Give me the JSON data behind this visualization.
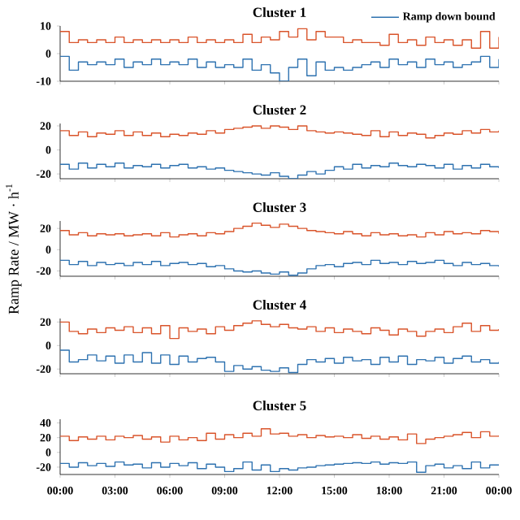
{
  "chart_data": [
    {
      "type": "step",
      "title": "Cluster 1",
      "x": [
        0,
        0.5,
        1,
        1.5,
        2,
        2.5,
        3,
        3.5,
        4,
        4.5,
        5,
        5.5,
        6,
        6.5,
        7,
        7.5,
        8,
        8.5,
        9,
        9.5,
        10,
        10.5,
        11,
        11.5,
        12,
        12.5,
        13,
        13.5,
        14,
        14.5,
        15,
        15.5,
        16,
        16.5,
        17,
        17.5,
        18,
        18.5,
        19,
        19.5,
        20,
        20.5,
        21,
        21.5,
        22,
        22.5,
        23,
        23.5,
        24
      ],
      "xlim": [
        0,
        24
      ],
      "xticks": [
        {
          "value": 0,
          "label": null
        },
        {
          "value": 3,
          "label": null
        },
        {
          "value": 6,
          "label": null
        },
        {
          "value": 9,
          "label": null
        },
        {
          "value": 12,
          "label": null
        },
        {
          "value": 15,
          "label": null
        },
        {
          "value": 18,
          "label": null
        },
        {
          "value": 21,
          "label": null
        },
        {
          "value": 24,
          "label": null
        }
      ],
      "ylim": [
        -10,
        10
      ],
      "yticks": [
        -10,
        0,
        10
      ],
      "tick_labels": "y",
      "legend": "top right",
      "series": [
        {
          "color": "#d9542b",
          "values": [
            8,
            4,
            5,
            4,
            5,
            4,
            6,
            4,
            5,
            4,
            5,
            4,
            5,
            4,
            6,
            4,
            5,
            4,
            5,
            4,
            7,
            4,
            6,
            5,
            8,
            6,
            9,
            5,
            8,
            6,
            6,
            4,
            5,
            4,
            4,
            3,
            7,
            4,
            5,
            3,
            6,
            4,
            5,
            3,
            5,
            2,
            8,
            2,
            6
          ]
        },
        {
          "name": "Ramp down bound",
          "color": "#2e72b0",
          "values": [
            -1,
            -6,
            -3,
            -4,
            -3,
            -4,
            -2,
            -5,
            -3,
            -4,
            -2,
            -4,
            -3,
            -4,
            -2,
            -5,
            -3,
            -5,
            -4,
            -5,
            -2,
            -6,
            -4,
            -7,
            -10,
            -5,
            -2,
            -8,
            -3,
            -6,
            -5,
            -6,
            -5,
            -4,
            -3,
            -5,
            -2,
            -4,
            -3,
            -5,
            -2,
            -4,
            -3,
            -5,
            -4,
            -3,
            -1,
            -5,
            -2
          ]
        }
      ]
    },
    {
      "type": "step",
      "title": "Cluster 2",
      "x": [
        0,
        0.5,
        1,
        1.5,
        2,
        2.5,
        3,
        3.5,
        4,
        4.5,
        5,
        5.5,
        6,
        6.5,
        7,
        7.5,
        8,
        8.5,
        9,
        9.5,
        10,
        10.5,
        11,
        11.5,
        12,
        12.5,
        13,
        13.5,
        14,
        14.5,
        15,
        15.5,
        16,
        16.5,
        17,
        17.5,
        18,
        18.5,
        19,
        19.5,
        20,
        20.5,
        21,
        21.5,
        22,
        22.5,
        23,
        23.5,
        24
      ],
      "xlim": [
        0,
        24
      ],
      "xticks": [
        {
          "value": 0,
          "label": null
        },
        {
          "value": 3,
          "label": null
        },
        {
          "value": 6,
          "label": null
        },
        {
          "value": 9,
          "label": null
        },
        {
          "value": 12,
          "label": null
        },
        {
          "value": 15,
          "label": null
        },
        {
          "value": 18,
          "label": null
        },
        {
          "value": 21,
          "label": null
        },
        {
          "value": 24,
          "label": null
        }
      ],
      "ylim": [
        -24,
        22
      ],
      "yticks": [
        -20,
        0,
        20
      ],
      "tick_labels": "y",
      "series": [
        {
          "color": "#d9542b",
          "values": [
            16,
            12,
            15,
            11,
            14,
            13,
            16,
            12,
            15,
            12,
            14,
            11,
            13,
            12,
            14,
            13,
            16,
            14,
            17,
            18,
            19,
            20,
            18,
            20,
            19,
            17,
            20,
            16,
            15,
            14,
            15,
            14,
            13,
            12,
            16,
            11,
            15,
            12,
            14,
            13,
            10,
            12,
            14,
            13,
            16,
            14,
            17,
            15,
            16
          ]
        },
        {
          "color": "#2e72b0",
          "values": [
            -12,
            -16,
            -11,
            -15,
            -12,
            -14,
            -11,
            -15,
            -13,
            -14,
            -12,
            -15,
            -13,
            -12,
            -15,
            -14,
            -16,
            -15,
            -17,
            -18,
            -19,
            -20,
            -21,
            -19,
            -22,
            -24,
            -21,
            -18,
            -20,
            -17,
            -14,
            -16,
            -12,
            -15,
            -13,
            -14,
            -11,
            -13,
            -14,
            -12,
            -13,
            -15,
            -12,
            -16,
            -13,
            -15,
            -12,
            -14,
            -15
          ]
        }
      ]
    },
    {
      "type": "step",
      "title": "Cluster 3",
      "ylabel": "Ramp Rate / MW · h$^{-1}$",
      "x": [
        0,
        0.5,
        1,
        1.5,
        2,
        2.5,
        3,
        3.5,
        4,
        4.5,
        5,
        5.5,
        6,
        6.5,
        7,
        7.5,
        8,
        8.5,
        9,
        9.5,
        10,
        10.5,
        11,
        11.5,
        12,
        12.5,
        13,
        13.5,
        14,
        14.5,
        15,
        15.5,
        16,
        16.5,
        17,
        17.5,
        18,
        18.5,
        19,
        19.5,
        20,
        20.5,
        21,
        21.5,
        22,
        22.5,
        23,
        23.5,
        24
      ],
      "xlim": [
        0,
        24
      ],
      "xticks": [
        {
          "value": 0,
          "label": null
        },
        {
          "value": 3,
          "label": null
        },
        {
          "value": 6,
          "label": null
        },
        {
          "value": 9,
          "label": null
        },
        {
          "value": 12,
          "label": null
        },
        {
          "value": 15,
          "label": null
        },
        {
          "value": 18,
          "label": null
        },
        {
          "value": 21,
          "label": null
        },
        {
          "value": 24,
          "label": null
        }
      ],
      "ylim": [
        -25,
        27
      ],
      "yticks": [
        -20,
        0,
        20
      ],
      "tick_labels": "y",
      "series": [
        {
          "color": "#d9542b",
          "values": [
            18,
            14,
            16,
            13,
            15,
            14,
            15,
            13,
            14,
            15,
            13,
            16,
            12,
            14,
            15,
            13,
            16,
            15,
            17,
            20,
            22,
            25,
            23,
            21,
            24,
            22,
            20,
            18,
            17,
            16,
            15,
            17,
            15,
            13,
            16,
            14,
            15,
            13,
            14,
            12,
            16,
            14,
            17,
            15,
            16,
            15,
            18,
            17,
            15
          ]
        },
        {
          "color": "#2e72b0",
          "values": [
            -10,
            -14,
            -11,
            -15,
            -12,
            -14,
            -13,
            -15,
            -12,
            -14,
            -11,
            -15,
            -13,
            -12,
            -14,
            -13,
            -16,
            -15,
            -18,
            -20,
            -21,
            -20,
            -22,
            -23,
            -21,
            -24,
            -22,
            -18,
            -15,
            -14,
            -16,
            -13,
            -12,
            -14,
            -10,
            -13,
            -12,
            -14,
            -11,
            -13,
            -12,
            -10,
            -13,
            -15,
            -12,
            -14,
            -13,
            -15,
            -16
          ]
        }
      ]
    },
    {
      "type": "step",
      "title": "Cluster 4",
      "x": [
        0,
        0.5,
        1,
        1.5,
        2,
        2.5,
        3,
        3.5,
        4,
        4.5,
        5,
        5.5,
        6,
        6.5,
        7,
        7.5,
        8,
        8.5,
        9,
        9.5,
        10,
        10.5,
        11,
        11.5,
        12,
        12.5,
        13,
        13.5,
        14,
        14.5,
        15,
        15.5,
        16,
        16.5,
        17,
        17.5,
        18,
        18.5,
        19,
        19.5,
        20,
        20.5,
        21,
        21.5,
        22,
        22.5,
        23,
        23.5,
        24
      ],
      "xlim": [
        0,
        24
      ],
      "xticks": [
        {
          "value": 0,
          "label": null
        },
        {
          "value": 3,
          "label": null
        },
        {
          "value": 6,
          "label": null
        },
        {
          "value": 9,
          "label": null
        },
        {
          "value": 12,
          "label": null
        },
        {
          "value": 15,
          "label": null
        },
        {
          "value": 18,
          "label": null
        },
        {
          "value": 21,
          "label": null
        },
        {
          "value": 24,
          "label": null
        }
      ],
      "ylim": [
        -24,
        23
      ],
      "yticks": [
        -20,
        0,
        20
      ],
      "tick_labels": "y",
      "series": [
        {
          "color": "#d9542b",
          "values": [
            20,
            12,
            10,
            14,
            11,
            15,
            13,
            16,
            11,
            15,
            10,
            17,
            6,
            15,
            12,
            14,
            10,
            16,
            13,
            17,
            19,
            21,
            18,
            16,
            18,
            15,
            14,
            16,
            12,
            15,
            11,
            14,
            12,
            10,
            15,
            13,
            9,
            14,
            12,
            8,
            12,
            14,
            11,
            16,
            19,
            12,
            17,
            13,
            14
          ]
        },
        {
          "color": "#2e72b0",
          "values": [
            -4,
            -14,
            -12,
            -8,
            -13,
            -9,
            -15,
            -8,
            -14,
            -6,
            -15,
            -8,
            -16,
            -9,
            -14,
            -11,
            -10,
            -14,
            -22,
            -17,
            -20,
            -18,
            -21,
            -22,
            -19,
            -23,
            -16,
            -12,
            -14,
            -11,
            -15,
            -10,
            -13,
            -12,
            -16,
            -10,
            -14,
            -9,
            -16,
            -12,
            -13,
            -10,
            -15,
            -11,
            -9,
            -14,
            -12,
            -15,
            -14
          ]
        }
      ]
    },
    {
      "type": "step",
      "title": "Cluster 5",
      "x": [
        0,
        0.5,
        1,
        1.5,
        2,
        2.5,
        3,
        3.5,
        4,
        4.5,
        5,
        5.5,
        6,
        6.5,
        7,
        7.5,
        8,
        8.5,
        9,
        9.5,
        10,
        10.5,
        11,
        11.5,
        12,
        12.5,
        13,
        13.5,
        14,
        14.5,
        15,
        15.5,
        16,
        16.5,
        17,
        17.5,
        18,
        18.5,
        19,
        19.5,
        20,
        20.5,
        21,
        21.5,
        22,
        22.5,
        23,
        23.5,
        24
      ],
      "xlim": [
        0,
        24
      ],
      "xticks": [
        {
          "value": 0,
          "label": "00:00"
        },
        {
          "value": 3,
          "label": "03:00"
        },
        {
          "value": 6,
          "label": "06:00"
        },
        {
          "value": 9,
          "label": "09:00"
        },
        {
          "value": 12,
          "label": "12:00"
        },
        {
          "value": 15,
          "label": "15:00"
        },
        {
          "value": 18,
          "label": "18:00"
        },
        {
          "value": 21,
          "label": "21:00"
        },
        {
          "value": 24,
          "label": "00:00"
        }
      ],
      "ylim": [
        -30,
        45
      ],
      "yticks": [
        -20,
        0,
        20,
        40
      ],
      "series": [
        {
          "color": "#d9542b",
          "values": [
            22,
            16,
            21,
            18,
            22,
            17,
            22,
            20,
            23,
            18,
            21,
            14,
            22,
            17,
            20,
            16,
            26,
            18,
            24,
            20,
            26,
            22,
            32,
            25,
            26,
            22,
            24,
            20,
            23,
            21,
            22,
            20,
            24,
            19,
            22,
            18,
            21,
            17,
            25,
            12,
            18,
            20,
            22,
            24,
            27,
            20,
            28,
            22,
            23
          ]
        },
        {
          "color": "#2e72b0",
          "values": [
            -15,
            -20,
            -14,
            -18,
            -15,
            -19,
            -13,
            -17,
            -16,
            -21,
            -14,
            -20,
            -15,
            -18,
            -14,
            -22,
            -16,
            -20,
            -26,
            -22,
            -13,
            -24,
            -17,
            -26,
            -22,
            -24,
            -21,
            -20,
            -18,
            -17,
            -16,
            -15,
            -14,
            -15,
            -13,
            -16,
            -14,
            -15,
            -13,
            -27,
            -18,
            -16,
            -21,
            -18,
            -22,
            -13,
            -21,
            -17,
            -18
          ]
        }
      ]
    }
  ]
}
